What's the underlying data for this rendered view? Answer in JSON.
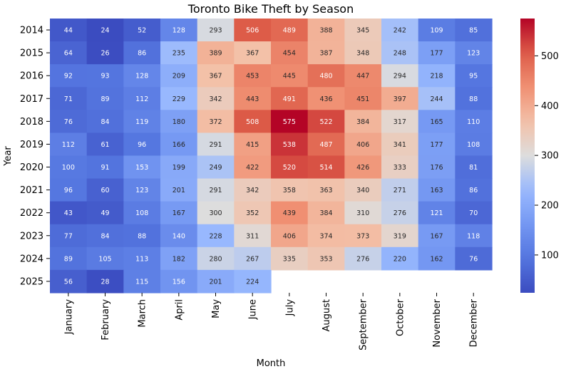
{
  "chart_data": {
    "type": "heatmap",
    "title": "Toronto Bike Theft by Season",
    "xlabel": "Month",
    "ylabel": "Year",
    "x_categories": [
      "January",
      "February",
      "March",
      "April",
      "May",
      "June",
      "July",
      "August",
      "September",
      "October",
      "November",
      "December"
    ],
    "y_categories": [
      "2014",
      "2015",
      "2016",
      "2017",
      "2018",
      "2019",
      "2020",
      "2021",
      "2022",
      "2023",
      "2024",
      "2025"
    ],
    "values": [
      [
        44,
        24,
        52,
        128,
        293,
        506,
        489,
        388,
        345,
        242,
        109,
        85
      ],
      [
        64,
        26,
        86,
        235,
        389,
        367,
        454,
        387,
        348,
        248,
        177,
        123
      ],
      [
        92,
        93,
        128,
        209,
        367,
        453,
        445,
        480,
        447,
        294,
        218,
        95
      ],
      [
        71,
        89,
        112,
        229,
        342,
        443,
        491,
        436,
        451,
        397,
        244,
        88
      ],
      [
        76,
        84,
        119,
        180,
        372,
        508,
        575,
        522,
        384,
        317,
        165,
        110
      ],
      [
        112,
        61,
        96,
        166,
        291,
        415,
        538,
        487,
        406,
        341,
        177,
        108
      ],
      [
        100,
        91,
        153,
        199,
        249,
        422,
        520,
        514,
        426,
        333,
        176,
        81
      ],
      [
        96,
        60,
        123,
        201,
        291,
        342,
        358,
        363,
        340,
        271,
        163,
        86
      ],
      [
        43,
        49,
        108,
        167,
        300,
        352,
        439,
        384,
        310,
        276,
        121,
        70
      ],
      [
        77,
        84,
        88,
        140,
        228,
        311,
        406,
        374,
        373,
        319,
        167,
        118
      ],
      [
        89,
        105,
        113,
        182,
        280,
        267,
        335,
        353,
        276,
        220,
        162,
        76
      ],
      [
        56,
        28,
        115,
        156,
        201,
        224,
        null,
        null,
        null,
        null,
        null,
        null
      ]
    ],
    "colormap": "coolwarm",
    "color_range": [
      24,
      575
    ],
    "colorbar_ticks": [
      100,
      200,
      300,
      400,
      500
    ],
    "annotations": true
  }
}
